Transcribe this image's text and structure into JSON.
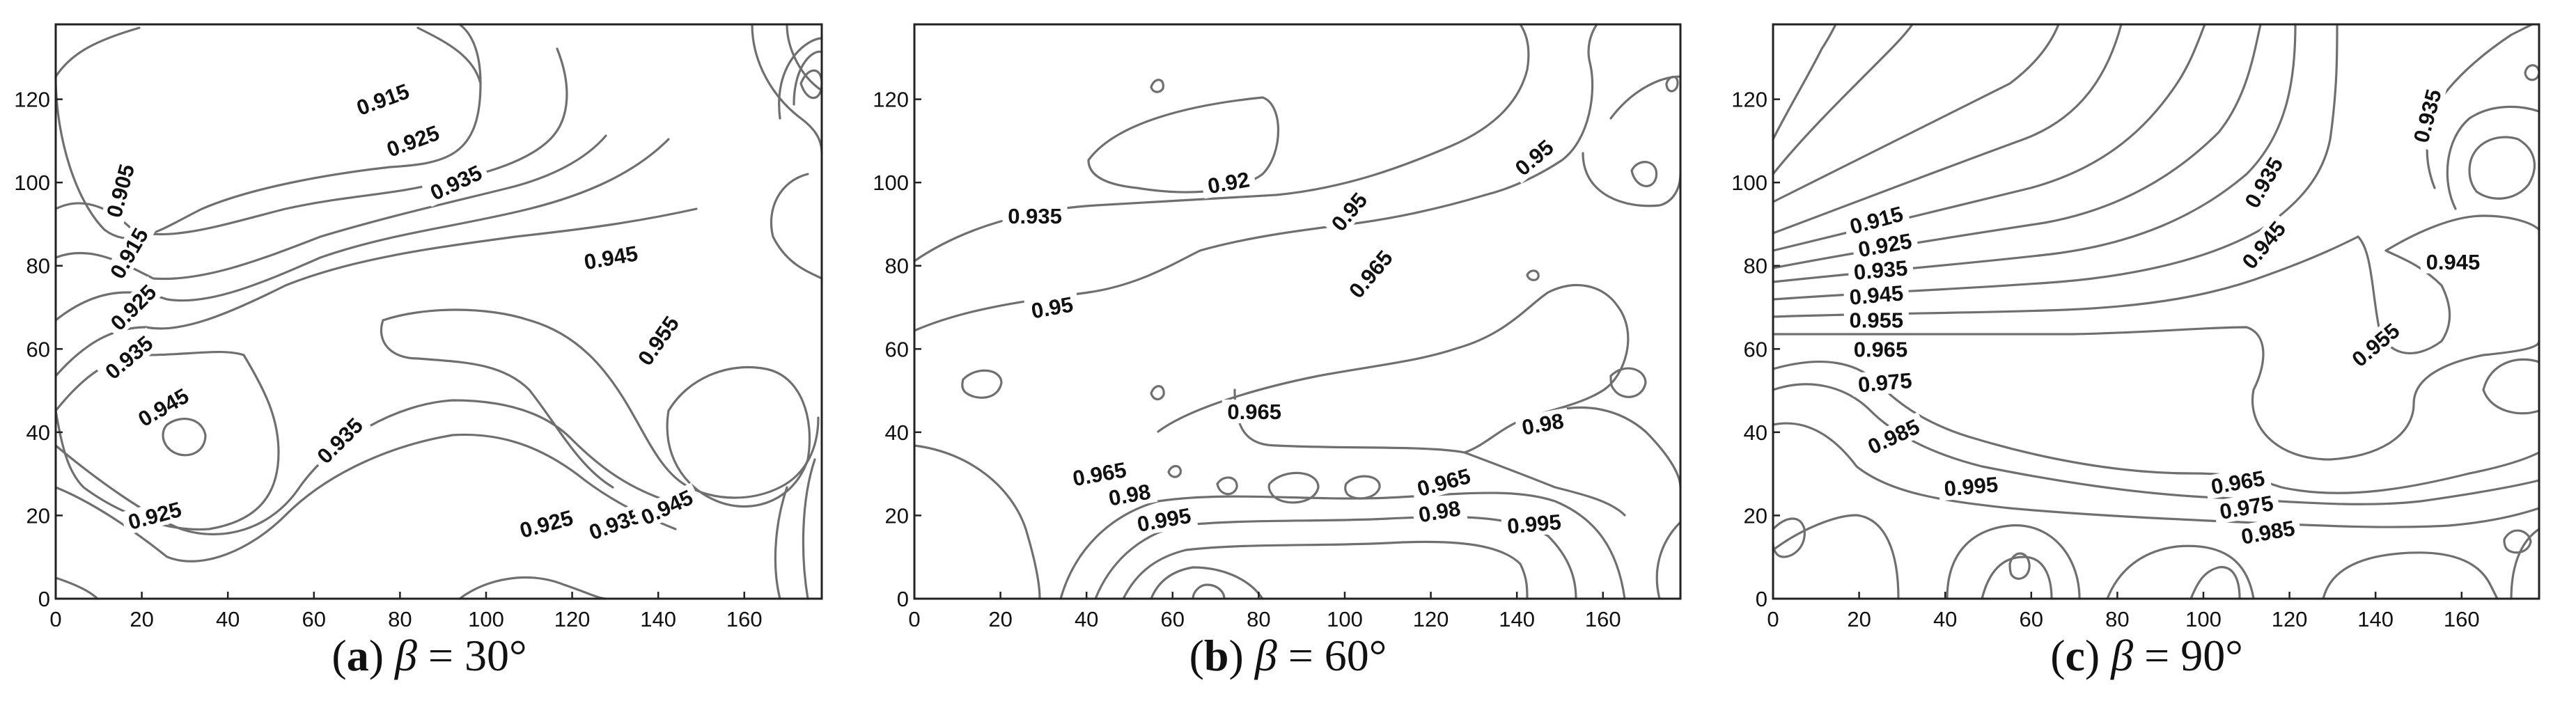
{
  "chart_data": [
    {
      "type": "contour",
      "panel_letter": "a",
      "angle_symbol": "β",
      "angle_text": "= 30°",
      "caption": "(a) β = 30°",
      "xlim": [
        0,
        178
      ],
      "ylim": [
        0,
        138
      ],
      "xticks": [
        "0",
        "20",
        "40",
        "60",
        "80",
        "100",
        "120",
        "140",
        "160"
      ],
      "yticks": [
        "0",
        "20",
        "40",
        "60",
        "80",
        "100",
        "120"
      ],
      "contour_labels": [
        {
          "text": "0.905",
          "x": 15,
          "y": 98,
          "angle": -75
        },
        {
          "text": "0.915",
          "x": 76,
          "y": 120,
          "angle": -20
        },
        {
          "text": "0.925",
          "x": 83,
          "y": 110,
          "angle": -20
        },
        {
          "text": "0.935",
          "x": 93,
          "y": 100,
          "angle": -25
        },
        {
          "text": "0.915",
          "x": 17,
          "y": 83,
          "angle": -60
        },
        {
          "text": "0.925",
          "x": 18,
          "y": 70,
          "angle": -45
        },
        {
          "text": "0.935",
          "x": 17,
          "y": 58,
          "angle": -40
        },
        {
          "text": "0.945",
          "x": 25,
          "y": 46,
          "angle": -30
        },
        {
          "text": "0.945",
          "x": 129,
          "y": 82,
          "angle": -10
        },
        {
          "text": "0.955",
          "x": 140,
          "y": 62,
          "angle": -55
        },
        {
          "text": "0.935",
          "x": 66,
          "y": 38,
          "angle": -45
        },
        {
          "text": "0.925",
          "x": 23,
          "y": 20,
          "angle": -15
        },
        {
          "text": "0.925",
          "x": 114,
          "y": 18,
          "angle": -15
        },
        {
          "text": "0.935",
          "x": 130,
          "y": 18,
          "angle": -20
        },
        {
          "text": "0.945",
          "x": 142,
          "y": 22,
          "angle": -25
        }
      ]
    },
    {
      "type": "contour",
      "panel_letter": "b",
      "angle_symbol": "β",
      "angle_text": "= 60°",
      "caption": "(b) β = 60°",
      "xlim": [
        0,
        178
      ],
      "ylim": [
        0,
        138
      ],
      "xticks": [
        "0",
        "20",
        "40",
        "60",
        "80",
        "100",
        "120",
        "140",
        "160"
      ],
      "yticks": [
        "0",
        "20",
        "40",
        "60",
        "80",
        "100",
        "120"
      ],
      "contour_labels": [
        {
          "text": "0.92",
          "x": 73,
          "y": 100,
          "angle": -10
        },
        {
          "text": "0.935",
          "x": 28,
          "y": 92,
          "angle": 0
        },
        {
          "text": "0.95",
          "x": 101,
          "y": 93,
          "angle": -50
        },
        {
          "text": "0.95",
          "x": 144,
          "y": 106,
          "angle": -40
        },
        {
          "text": "0.965",
          "x": 106,
          "y": 78,
          "angle": -50
        },
        {
          "text": "0.95",
          "x": 32,
          "y": 70,
          "angle": -10
        },
        {
          "text": "0.965",
          "x": 79,
          "y": 45,
          "angle": 0
        },
        {
          "text": "0.98",
          "x": 146,
          "y": 42,
          "angle": -10
        },
        {
          "text": "0.965",
          "x": 43,
          "y": 30,
          "angle": -10
        },
        {
          "text": "0.98",
          "x": 50,
          "y": 25,
          "angle": -10
        },
        {
          "text": "0.995",
          "x": 58,
          "y": 19,
          "angle": -10
        },
        {
          "text": "0.965",
          "x": 123,
          "y": 28,
          "angle": -15
        },
        {
          "text": "0.98",
          "x": 122,
          "y": 21,
          "angle": -10
        },
        {
          "text": "0.995",
          "x": 144,
          "y": 18,
          "angle": -5
        }
      ]
    },
    {
      "type": "contour",
      "panel_letter": "c",
      "angle_symbol": "β",
      "angle_text": "= 90°",
      "caption": "(c) β = 90°",
      "xlim": [
        0,
        178
      ],
      "ylim": [
        0,
        138
      ],
      "xticks": [
        "0",
        "20",
        "40",
        "60",
        "80",
        "100",
        "120",
        "140",
        "160"
      ],
      "yticks": [
        "0",
        "20",
        "40",
        "60",
        "80",
        "100",
        "120"
      ],
      "contour_labels": [
        {
          "text": "0.935",
          "x": 114,
          "y": 100,
          "angle": -60
        },
        {
          "text": "0.935",
          "x": 152,
          "y": 116,
          "angle": -75
        },
        {
          "text": "0.945",
          "x": 114,
          "y": 85,
          "angle": -50
        },
        {
          "text": "0.945",
          "x": 158,
          "y": 81,
          "angle": 0
        },
        {
          "text": "0.955",
          "x": 140,
          "y": 61,
          "angle": -40
        },
        {
          "text": "0.915",
          "x": 24,
          "y": 91,
          "angle": -15
        },
        {
          "text": "0.925",
          "x": 26,
          "y": 85,
          "angle": -10
        },
        {
          "text": "0.935",
          "x": 25,
          "y": 79,
          "angle": -5
        },
        {
          "text": "0.945",
          "x": 24,
          "y": 73,
          "angle": -5
        },
        {
          "text": "0.955",
          "x": 24,
          "y": 67,
          "angle": 0
        },
        {
          "text": "0.965",
          "x": 25,
          "y": 60,
          "angle": 0
        },
        {
          "text": "0.975",
          "x": 26,
          "y": 52,
          "angle": -5
        },
        {
          "text": "0.985",
          "x": 28,
          "y": 39,
          "angle": -25
        },
        {
          "text": "0.995",
          "x": 46,
          "y": 27,
          "angle": -5
        },
        {
          "text": "0.965",
          "x": 108,
          "y": 28,
          "angle": -10
        },
        {
          "text": "0.975",
          "x": 110,
          "y": 22,
          "angle": -10
        },
        {
          "text": "0.985",
          "x": 115,
          "y": 16,
          "angle": -10
        }
      ]
    }
  ]
}
